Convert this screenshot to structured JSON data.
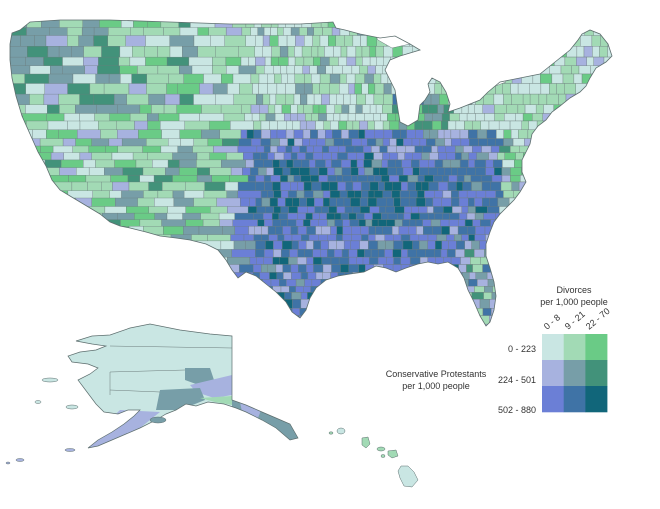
{
  "map": {
    "title": "",
    "regions": [
      "contiguous-us",
      "alaska",
      "hawaii"
    ],
    "stroke_color": "#6b7b7b",
    "background": "#ffffff"
  },
  "legend": {
    "column_title_line1": "Divorces",
    "column_title_line2": "per 1,000 people",
    "columns": [
      "0 - 8",
      "9 - 21",
      "22 - 70"
    ],
    "row_title_line1": "Conservative Protestants",
    "row_title_line2": "per 1,000 people",
    "rows": [
      "0 - 223",
      "224 - 501",
      "502 - 880"
    ],
    "cells": [
      [
        "#c9e6e3",
        "#a2dab5",
        "#6acb86"
      ],
      [
        "#a7b2df",
        "#779ea8",
        "#42927a"
      ],
      [
        "#6b7fd6",
        "#3f73a6",
        "#11667a"
      ]
    ]
  },
  "chart_data": {
    "type": "heatmap",
    "title": "Bivariate choropleth: Conservative Protestants vs Divorces by US county",
    "xlabel": "Divorces per 1,000 people",
    "ylabel": "Conservative Protestants per 1,000 people",
    "x_categories": [
      "0 - 8",
      "9 - 21",
      "22 - 70"
    ],
    "y_categories": [
      "0 - 223",
      "224 - 501",
      "502 - 880"
    ],
    "color_matrix": [
      [
        "#c9e6e3",
        "#a2dab5",
        "#6acb86"
      ],
      [
        "#a7b2df",
        "#779ea8",
        "#42927a"
      ],
      [
        "#6b7fd6",
        "#3f73a6",
        "#11667a"
      ]
    ],
    "observations": {
      "south_southeast": "predominantly 502-880 conservative protestants (blue/dark teal)",
      "northeast_upper_midwest": "predominantly 0-223 conservative protestants, low-mid divorces (light teal/light green)",
      "mountain_west": "mixed light green/green, higher divorces",
      "pacific_northwest": "mixed mid-blue-grey (224-501) tones",
      "alaska": "mostly 0-223 / 0-8 (lightest)",
      "hawaii": "light green / lightest"
    }
  }
}
